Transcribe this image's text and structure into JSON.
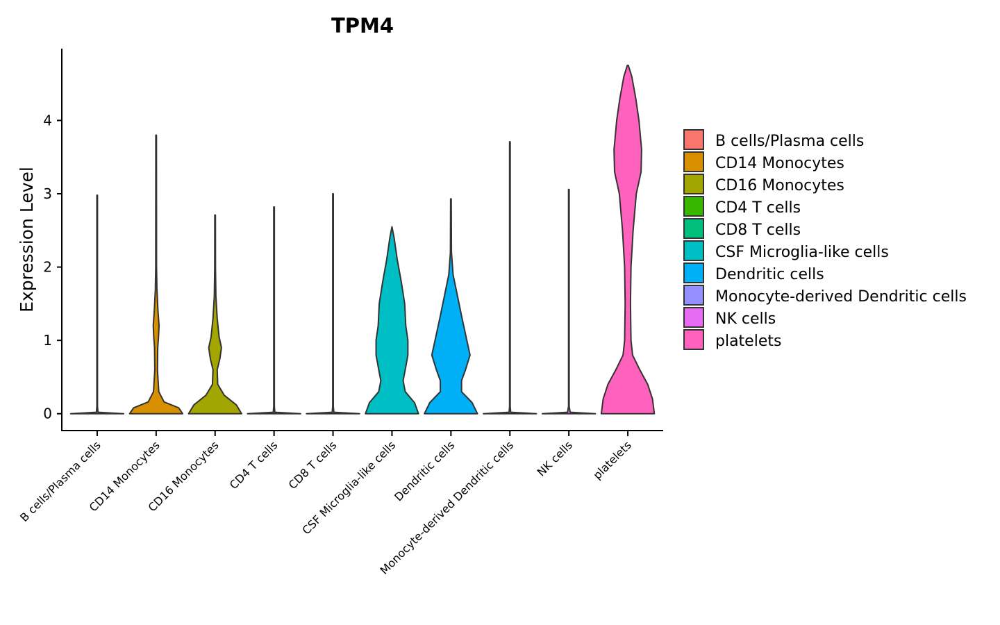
{
  "chart_data": {
    "type": "violin",
    "title": "TPM4",
    "xlabel": "",
    "ylabel": "Expression Level",
    "ylim": [
      -0.23,
      4.98
    ],
    "yticks": [
      0,
      1,
      2,
      3,
      4
    ],
    "categories": [
      "B cells/Plasma cells",
      "CD14 Monocytes",
      "CD16 Monocytes",
      "CD4 T cells",
      "CD8 T cells",
      "CSF Microglia-like cells",
      "Dendritic cells",
      "Monocyte-derived Dendritic cells",
      "NK cells",
      "platelets"
    ],
    "colors": [
      "#F8766D",
      "#D89000",
      "#A3A500",
      "#39B600",
      "#00BF7D",
      "#00BFC4",
      "#00B0F6",
      "#9590FF",
      "#E76BF3",
      "#FF62BC"
    ],
    "violins": [
      {
        "min": 0,
        "max": 2.98,
        "profile": [
          [
            0,
            1
          ],
          [
            0.02,
            0.03
          ],
          [
            0.1,
            0.012
          ],
          [
            2.98,
            0.012
          ]
        ]
      },
      {
        "min": 0,
        "max": 3.8,
        "profile": [
          [
            0,
            1
          ],
          [
            0.08,
            0.85
          ],
          [
            0.16,
            0.3
          ],
          [
            0.3,
            0.1
          ],
          [
            0.6,
            0.05
          ],
          [
            0.9,
            0.06
          ],
          [
            1.05,
            0.09
          ],
          [
            1.2,
            0.11
          ],
          [
            1.4,
            0.07
          ],
          [
            1.7,
            0.03
          ],
          [
            2.0,
            0.015
          ],
          [
            3.8,
            0.012
          ]
        ]
      },
      {
        "min": 0,
        "max": 2.71,
        "profile": [
          [
            0,
            1
          ],
          [
            0.12,
            0.8
          ],
          [
            0.25,
            0.35
          ],
          [
            0.4,
            0.1
          ],
          [
            0.6,
            0.08
          ],
          [
            0.75,
            0.18
          ],
          [
            0.9,
            0.24
          ],
          [
            1.05,
            0.15
          ],
          [
            1.3,
            0.08
          ],
          [
            1.6,
            0.03
          ],
          [
            2.0,
            0.015
          ],
          [
            2.71,
            0.012
          ]
        ]
      },
      {
        "min": 0,
        "max": 2.82,
        "profile": [
          [
            0,
            1
          ],
          [
            0.02,
            0.03
          ],
          [
            0.1,
            0.012
          ],
          [
            2.82,
            0.012
          ]
        ]
      },
      {
        "min": 0,
        "max": 3.0,
        "profile": [
          [
            0,
            1
          ],
          [
            0.02,
            0.03
          ],
          [
            0.1,
            0.012
          ],
          [
            3.0,
            0.012
          ]
        ]
      },
      {
        "min": 0,
        "max": 2.55,
        "profile": [
          [
            0,
            1
          ],
          [
            0.15,
            0.85
          ],
          [
            0.3,
            0.5
          ],
          [
            0.45,
            0.42
          ],
          [
            0.6,
            0.5
          ],
          [
            0.8,
            0.6
          ],
          [
            1.0,
            0.6
          ],
          [
            1.2,
            0.52
          ],
          [
            1.5,
            0.48
          ],
          [
            1.8,
            0.35
          ],
          [
            2.1,
            0.2
          ],
          [
            2.4,
            0.08
          ],
          [
            2.55,
            0.0
          ]
        ]
      },
      {
        "min": 0,
        "max": 2.93,
        "profile": [
          [
            0,
            1
          ],
          [
            0.15,
            0.8
          ],
          [
            0.3,
            0.4
          ],
          [
            0.45,
            0.4
          ],
          [
            0.6,
            0.55
          ],
          [
            0.8,
            0.72
          ],
          [
            1.0,
            0.6
          ],
          [
            1.3,
            0.42
          ],
          [
            1.6,
            0.25
          ],
          [
            1.9,
            0.08
          ],
          [
            2.2,
            0.02
          ],
          [
            2.93,
            0.012
          ]
        ]
      },
      {
        "min": 0,
        "max": 3.71,
        "profile": [
          [
            0,
            1
          ],
          [
            0.02,
            0.03
          ],
          [
            0.1,
            0.012
          ],
          [
            3.71,
            0.012
          ]
        ]
      },
      {
        "min": 0,
        "max": 3.06,
        "profile": [
          [
            0,
            1
          ],
          [
            0.02,
            0.05
          ],
          [
            0.1,
            0.012
          ],
          [
            3.06,
            0.012
          ]
        ]
      },
      {
        "min": 0,
        "max": 4.75,
        "profile": [
          [
            0,
            1
          ],
          [
            0.2,
            0.93
          ],
          [
            0.4,
            0.75
          ],
          [
            0.6,
            0.45
          ],
          [
            0.8,
            0.18
          ],
          [
            1.0,
            0.12
          ],
          [
            1.5,
            0.1
          ],
          [
            2.0,
            0.12
          ],
          [
            2.5,
            0.2
          ],
          [
            3.0,
            0.32
          ],
          [
            3.3,
            0.5
          ],
          [
            3.6,
            0.52
          ],
          [
            4.0,
            0.42
          ],
          [
            4.3,
            0.3
          ],
          [
            4.6,
            0.15
          ],
          [
            4.75,
            0.02
          ]
        ]
      }
    ],
    "legend": {
      "position": "right",
      "entries": [
        "B cells/Plasma cells",
        "CD14 Monocytes",
        "CD16 Monocytes",
        "CD4 T cells",
        "CD8 T cells",
        "CSF Microglia-like cells",
        "Dendritic cells",
        "Monocyte-derived Dendritic cells",
        "NK cells",
        "platelets"
      ]
    },
    "grid": false
  }
}
